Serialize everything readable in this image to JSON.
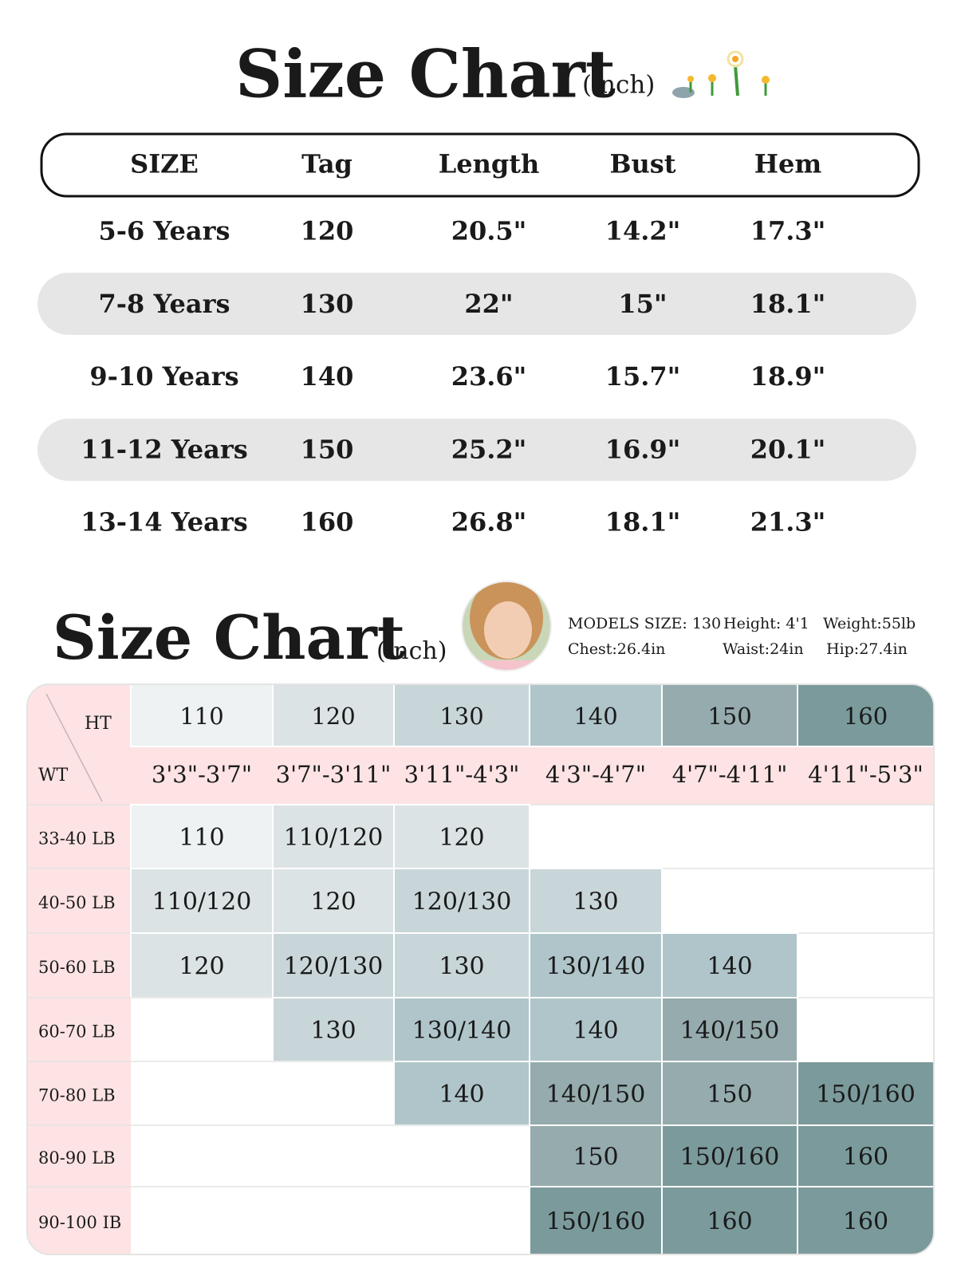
{
  "top": {
    "title": "Size Chart",
    "unit": "(inch)",
    "table": {
      "header": [
        "SIZE",
        "Tag",
        "Length",
        "Bust",
        "Hem"
      ],
      "rows": [
        [
          "5-6 Years",
          "120",
          "20.5\"",
          "14.2\"",
          "17.3\""
        ],
        [
          "7-8 Years",
          "130",
          "22\"",
          "15\"",
          "18.1\""
        ],
        [
          "9-10 Years",
          "140",
          "23.6\"",
          "15.7\"",
          "18.9\""
        ],
        [
          "11-12 Years",
          "150",
          "25.2\"",
          "16.9\"",
          "20.1\""
        ],
        [
          "13-14 Years",
          "160",
          "26.8\"",
          "18.1\"",
          "21.3\""
        ]
      ]
    }
  },
  "bottom": {
    "title": "Size Chart",
    "unit": "(inch)",
    "model": [
      "MODELS  SIZE: 130",
      "Height: 4'1",
      "Weight:55lb",
      "Chest:26.4in",
      "Waist:24in",
      "Hip:27.4in"
    ],
    "grid": {
      "ht_label": "HT",
      "wt_label": "WT",
      "heights": [
        "110",
        "120",
        "130",
        "140",
        "150",
        "160"
      ],
      "height_ranges": [
        "3'3\"-3'7\"",
        "3'7\"-3'11\"",
        "3'11\"-4'3\"",
        "4'3\"-4'7\"",
        "4'7\"-4'11\"",
        "4'11\"-5'3\""
      ],
      "colors": [
        "#eef2f3",
        "#dce3e5",
        "#c9d6d9",
        "#afc5ca",
        "#95abad",
        "#7b9a9b"
      ],
      "rows": [
        {
          "weight": "33-40 LB",
          "cells": [
            "110",
            "110/120",
            "120",
            null,
            null,
            null
          ]
        },
        {
          "weight": "40-50 LB",
          "cells": [
            "110/120",
            "120",
            "120/130",
            "130",
            null,
            null
          ]
        },
        {
          "weight": "50-60 LB",
          "cells": [
            "120",
            "120/130",
            "130",
            "130/140",
            "140",
            null
          ]
        },
        {
          "weight": "60-70 LB",
          "cells": [
            null,
            "130",
            "130/140",
            "140",
            "140/150",
            null
          ]
        },
        {
          "weight": "70-80 LB",
          "cells": [
            null,
            null,
            "140",
            "140/150",
            "150",
            "150/160"
          ]
        },
        {
          "weight": "80-90 LB",
          "cells": [
            null,
            null,
            null,
            "150",
            "150/160",
            "160"
          ]
        },
        {
          "weight": "90-100 IB",
          "cells": [
            null,
            null,
            null,
            "150/160",
            "160",
            "160"
          ]
        }
      ]
    }
  }
}
